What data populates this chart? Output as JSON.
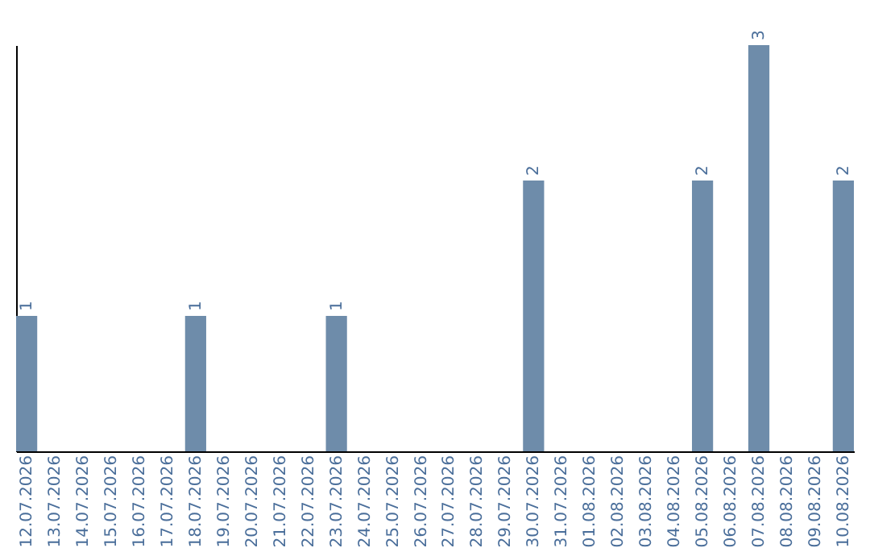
{
  "chart_data": {
    "type": "bar",
    "categories": [
      "12.07.2026",
      "13.07.2026",
      "14.07.2026",
      "15.07.2026",
      "16.07.2026",
      "17.07.2026",
      "18.07.2026",
      "19.07.2026",
      "20.07.2026",
      "21.07.2026",
      "22.07.2026",
      "23.07.2026",
      "24.07.2026",
      "25.07.2026",
      "26.07.2026",
      "27.07.2026",
      "28.07.2026",
      "29.07.2026",
      "30.07.2026",
      "31.07.2026",
      "01.08.2026",
      "02.08.2026",
      "03.08.2026",
      "04.08.2026",
      "05.08.2026",
      "06.08.2026",
      "07.08.2026",
      "08.08.2026",
      "09.08.2026",
      "10.08.2026"
    ],
    "values": [
      1,
      null,
      null,
      null,
      null,
      null,
      1,
      null,
      null,
      null,
      null,
      1,
      null,
      null,
      null,
      null,
      null,
      null,
      2,
      null,
      null,
      null,
      null,
      null,
      2,
      null,
      3,
      null,
      null,
      2
    ],
    "color": "#6e8caa",
    "data_labels": true,
    "grid": false
  }
}
